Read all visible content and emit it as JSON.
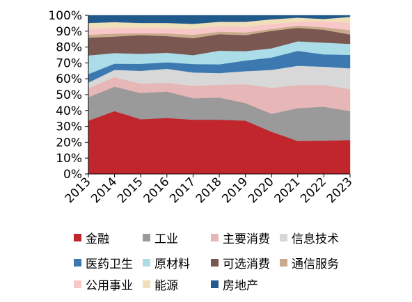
{
  "chart_data": {
    "type": "area",
    "stacked": true,
    "normalized": true,
    "categories": [
      "2013",
      "2014",
      "2015",
      "2016",
      "2017",
      "2018",
      "2019",
      "2020",
      "2021",
      "2022",
      "2023"
    ],
    "ylim": [
      0,
      100
    ],
    "yticks": [
      "0%",
      "10%",
      "20%",
      "30%",
      "40%",
      "50%",
      "60%",
      "70%",
      "80%",
      "90%",
      "100%"
    ],
    "grid": false,
    "legend_position": "bottom",
    "series": [
      {
        "name": "金融",
        "color": "#C0262B",
        "values": [
          33.6,
          39.6,
          34.5,
          35.3,
          34.2,
          34.2,
          33.6,
          26.6,
          20.8,
          21.0,
          21.4
        ]
      },
      {
        "name": "工业",
        "color": "#9A9A9A",
        "values": [
          14.8,
          15.4,
          16.5,
          16.7,
          13.5,
          14.0,
          11.1,
          11.3,
          20.7,
          21.4,
          18.2
        ]
      },
      {
        "name": "主要消费",
        "color": "#E7B6B6",
        "values": [
          5.6,
          6.0,
          5.9,
          5.5,
          7.8,
          8.1,
          11.9,
          16.4,
          14.6,
          13.7,
          13.9
        ]
      },
      {
        "name": "信息技术",
        "color": "#D8D8D8",
        "values": [
          3.6,
          4.6,
          8.1,
          8.8,
          8.5,
          7.3,
          8.2,
          11.3,
          12.1,
          11.5,
          13.1
        ]
      },
      {
        "name": "医药卫生",
        "color": "#3C79B0",
        "values": [
          5.4,
          3.9,
          4.4,
          4.1,
          5.3,
          5.5,
          6.7,
          7.8,
          9.4,
          7.8,
          8.5
        ]
      },
      {
        "name": "原材料",
        "color": "#ABDDE8",
        "values": [
          11.7,
          6.7,
          6.3,
          6.0,
          5.6,
          8.6,
          5.9,
          5.8,
          6.0,
          7.4,
          6.9
        ]
      },
      {
        "name": "可选消费",
        "color": "#7A5750",
        "values": [
          11.2,
          10.4,
          11.8,
          10.5,
          10.7,
          10.4,
          10.1,
          11.0,
          8.5,
          8.1,
          5.9
        ]
      },
      {
        "name": "通信服务",
        "color": "#C8AB8C",
        "values": [
          1.9,
          1.9,
          1.2,
          1.7,
          2.1,
          1.6,
          1.7,
          1.2,
          1.4,
          1.6,
          2.8
        ]
      },
      {
        "name": "公用事业",
        "color": "#F8C8C8",
        "values": [
          3.7,
          3.8,
          3.5,
          3.3,
          3.8,
          3.7,
          3.5,
          3.2,
          2.4,
          3.8,
          4.6
        ]
      },
      {
        "name": "能源",
        "color": "#F0E0BA",
        "values": [
          3.7,
          3.4,
          3.0,
          3.3,
          3.1,
          2.5,
          3.2,
          2.9,
          2.6,
          1.4,
          3.7
        ]
      },
      {
        "name": "房地产",
        "color": "#205A8C",
        "values": [
          4.8,
          4.3,
          4.8,
          4.8,
          5.4,
          4.1,
          4.1,
          2.5,
          1.5,
          2.3,
          1.0
        ]
      }
    ]
  }
}
